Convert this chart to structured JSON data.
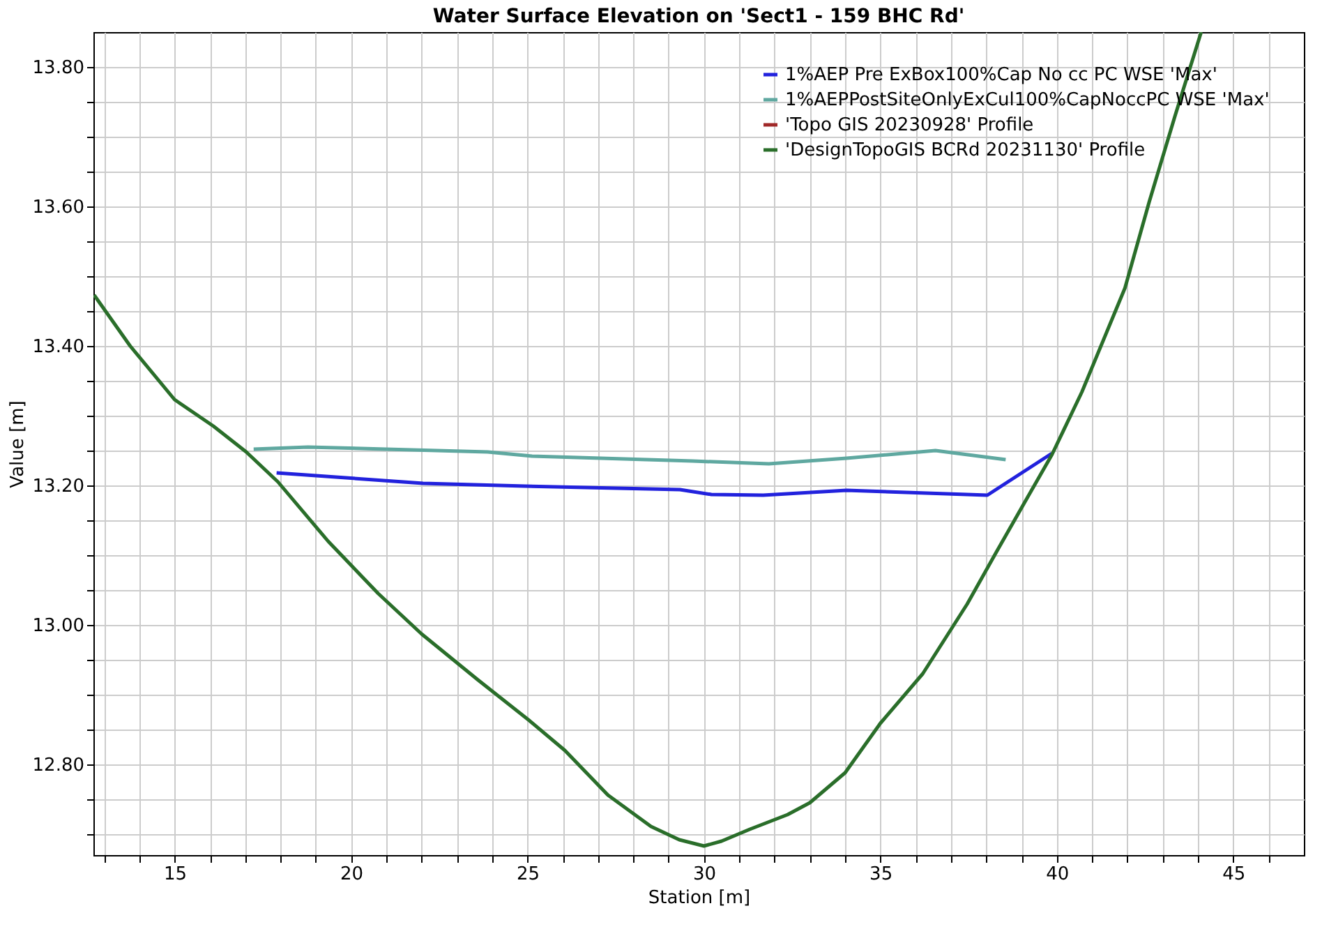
{
  "chart_data": {
    "type": "line",
    "title": "Water Surface Elevation on 'Sect1 - 159 BHC Rd'",
    "xlabel": "Station [m]",
    "ylabel": "Value [m]",
    "xlim": [
      12.7,
      47.0
    ],
    "ylim": [
      12.67,
      13.85
    ],
    "xticks": [
      {
        "value": 13,
        "label": null
      },
      {
        "value": 14,
        "label": null
      },
      15,
      {
        "value": 16,
        "label": null
      },
      {
        "value": 17,
        "label": null
      },
      {
        "value": 18,
        "label": null
      },
      {
        "value": 19,
        "label": null
      },
      20,
      {
        "value": 21,
        "label": null
      },
      {
        "value": 22,
        "label": null
      },
      {
        "value": 23,
        "label": null
      },
      {
        "value": 24,
        "label": null
      },
      25,
      {
        "value": 26,
        "label": null
      },
      {
        "value": 27,
        "label": null
      },
      {
        "value": 28,
        "label": null
      },
      {
        "value": 29,
        "label": null
      },
      30,
      {
        "value": 31,
        "label": null
      },
      {
        "value": 32,
        "label": null
      },
      {
        "value": 33,
        "label": null
      },
      {
        "value": 34,
        "label": null
      },
      35,
      {
        "value": 36,
        "label": null
      },
      {
        "value": 37,
        "label": null
      },
      {
        "value": 38,
        "label": null
      },
      {
        "value": 39,
        "label": null
      },
      40,
      {
        "value": 41,
        "label": null
      },
      {
        "value": 42,
        "label": null
      },
      {
        "value": 43,
        "label": null
      },
      {
        "value": 44,
        "label": null
      },
      45,
      {
        "value": 46,
        "label": null
      }
    ],
    "yticks": [
      {
        "value": 12.7,
        "label": null
      },
      {
        "value": 12.75,
        "label": null
      },
      {
        "value": 12.8,
        "label": "12.80"
      },
      {
        "value": 12.85,
        "label": null
      },
      {
        "value": 12.9,
        "label": null
      },
      {
        "value": 12.95,
        "label": null
      },
      {
        "value": 13.0,
        "label": "13.00"
      },
      {
        "value": 13.05,
        "label": null
      },
      {
        "value": 13.1,
        "label": null
      },
      {
        "value": 13.15,
        "label": null
      },
      {
        "value": 13.2,
        "label": "13.20"
      },
      {
        "value": 13.25,
        "label": null
      },
      {
        "value": 13.3,
        "label": null
      },
      {
        "value": 13.35,
        "label": null
      },
      {
        "value": 13.4,
        "label": "13.40"
      },
      {
        "value": 13.45,
        "label": null
      },
      {
        "value": 13.5,
        "label": null
      },
      {
        "value": 13.55,
        "label": null
      },
      {
        "value": 13.6,
        "label": "13.60"
      },
      {
        "value": 13.65,
        "label": null
      },
      {
        "value": 13.7,
        "label": null
      },
      {
        "value": 13.75,
        "label": null
      },
      {
        "value": 13.8,
        "label": "13.80"
      }
    ],
    "grid": true,
    "legend": "top right",
    "line_style": "solid",
    "series": [
      {
        "name": "1%AEP Pre ExBox100%Cap No cc PC WSE 'Max'",
        "color": "#2222dd",
        "x": [
          17.89,
          22.04,
          24.93,
          29.32,
          30.21,
          31.68,
          34.04,
          38.03,
          39.86
        ],
        "values": [
          13.218,
          13.203,
          13.199,
          13.194,
          13.187,
          13.186,
          13.193,
          13.186,
          13.246
        ]
      },
      {
        "name": "1%AEPPostSiteOnlyExCul100%CapNoccPC WSE 'Max'",
        "color": "#5fa8a0",
        "x": [
          17.24,
          18.78,
          23.87,
          25.13,
          29.68,
          31.84,
          34.04,
          36.56,
          38.55
        ],
        "values": [
          13.252,
          13.255,
          13.248,
          13.242,
          13.235,
          13.231,
          13.239,
          13.25,
          13.237
        ]
      },
      {
        "name": "'Topo GIS 20230928' Profile",
        "color": "#a02828"
      },
      {
        "name": "'DesignTopoGIS BCRd 20231130' Profile",
        "color": "#2a6e2a",
        "x": [
          12.72,
          13.74,
          15.0,
          16.1,
          17.03,
          17.93,
          19.35,
          20.77,
          22.0,
          23.6,
          25.05,
          26.06,
          27.28,
          28.5,
          29.3,
          30.0,
          30.5,
          31.3,
          32.37,
          33.0,
          34.0,
          35.0,
          36.2,
          37.46,
          38.27,
          39.08,
          39.86,
          40.71,
          41.93,
          42.62,
          43.35,
          44.09
        ],
        "values": [
          13.473,
          13.4,
          13.323,
          13.285,
          13.248,
          13.205,
          13.12,
          13.045,
          12.987,
          12.921,
          12.863,
          12.82,
          12.756,
          12.711,
          12.692,
          12.683,
          12.69,
          12.707,
          12.728,
          12.745,
          12.788,
          12.859,
          12.93,
          13.03,
          13.103,
          13.175,
          13.244,
          13.334,
          13.483,
          13.607,
          13.73,
          13.85
        ]
      }
    ]
  }
}
